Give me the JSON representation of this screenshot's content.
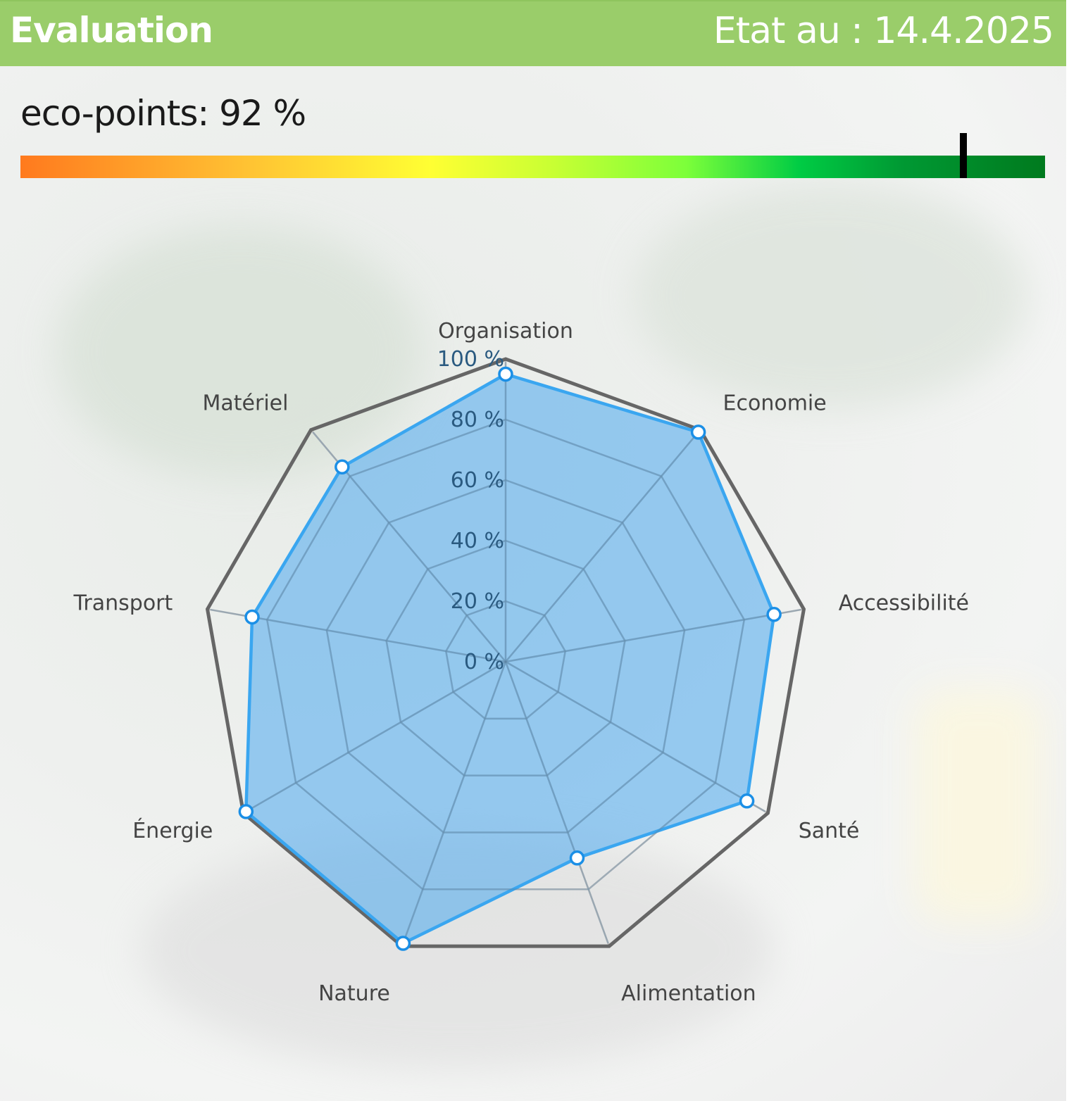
{
  "header": {
    "title": "Evaluation",
    "date": "Etat au : 14.4.2025"
  },
  "eco_points": {
    "label": "eco-points: 92 %",
    "value_percent": 92
  },
  "colors": {
    "header_bg": "#9acd6a",
    "series_fill": "#4aa8ef",
    "series_line": "#3aa6f0",
    "outer_polygon": "#666666",
    "marker_stroke": "#1b8fe6"
  },
  "chart_data": {
    "type": "radar",
    "categories": [
      "Organisation",
      "Economie",
      "Accessibilité",
      "Santé",
      "Alimentation",
      "Nature",
      "Énergie",
      "Transport",
      "Matériel"
    ],
    "values": [
      95,
      99,
      90,
      92,
      69,
      99,
      99,
      85,
      84
    ],
    "radial_ticks": [
      "0 %",
      "20 %",
      "40 %",
      "60 %",
      "80 %",
      "100 %"
    ],
    "radial_range": [
      0,
      100
    ]
  }
}
